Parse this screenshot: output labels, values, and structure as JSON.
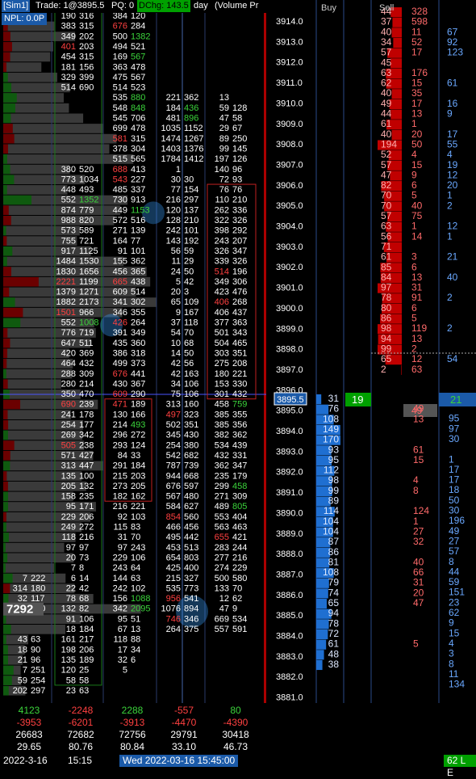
{
  "header": {
    "account": "[Sim1]",
    "trade": "Trade: 1@3895.5",
    "pq": "PQ: 0",
    "dchg": "DChg: 143.5",
    "period": "day",
    "volume_profile": "(Volume Pr",
    "npl": "NPL: 0.0P"
  },
  "ladder_headers": {
    "buy": "Buy",
    "sell": "Sell"
  },
  "current_price": "3895.5",
  "last_trade_buy": "19",
  "last_trade_sell": "21",
  "ask_highlight": "49",
  "poc_label": "7292",
  "price_levels": [
    "3914.0",
    "3913.0",
    "3912.0",
    "3911.0",
    "3910.0",
    "3909.0",
    "3908.0",
    "3907.0",
    "3906.0",
    "3905.0",
    "3904.0",
    "3903.0",
    "3902.0",
    "3901.0",
    "3900.0",
    "3899.0",
    "3898.0",
    "3897.0",
    "3896.0",
    "3895.0",
    "3894.0",
    "3893.0",
    "3892.0",
    "3891.0",
    "3890.0",
    "3889.0",
    "3888.0",
    "3887.0",
    "3886.0",
    "3885.0",
    "3884.0",
    "3883.0",
    "3882.0",
    "3881.0"
  ],
  "sell_depth": [
    "44",
    "37",
    "40",
    "34",
    "57",
    "45",
    "63",
    "62",
    "40",
    "49",
    "44",
    "61",
    "40",
    "194",
    "52",
    "57",
    "47",
    "82",
    "70",
    "70",
    "57",
    "63",
    "56",
    "71",
    "61",
    "85",
    "84",
    "97",
    "78",
    "80",
    "86",
    "98",
    "94",
    "99",
    "65",
    "2"
  ],
  "sell_traded": [
    "328",
    "598",
    "11",
    "52",
    "17",
    "",
    "176",
    "15",
    "35",
    "17",
    "13",
    "1",
    "20",
    "50",
    "4",
    "15",
    "9",
    "6",
    "5",
    "40",
    "75",
    "1",
    "14",
    "",
    "3",
    "6",
    "13",
    "31",
    "91",
    "6",
    "5",
    "119",
    "13",
    "2",
    "12",
    "63"
  ],
  "sell_extra": [
    "",
    "",
    "67",
    "92",
    "123",
    "",
    "",
    "61",
    "",
    "16",
    "9",
    "",
    "17",
    "55",
    "4",
    "19",
    "12",
    "20",
    "1",
    "2",
    "",
    "12",
    "1",
    "",
    "21",
    "",
    "40",
    "",
    "2",
    "",
    "",
    "2",
    "",
    "",
    "54",
    ""
  ],
  "bid_depth": [
    "31",
    "76",
    "108",
    "149",
    "170",
    "93",
    "95",
    "112",
    "98",
    "99",
    "89",
    "114",
    "104",
    "104",
    "87",
    "86",
    "81",
    "108",
    "79",
    "74",
    "65",
    "94",
    "78",
    "72",
    "61",
    "48",
    "38"
  ],
  "bid_traded": [
    "",
    "49",
    "13",
    "",
    "",
    "61",
    "15",
    "",
    "4",
    "8",
    "",
    "124",
    "1",
    "27",
    "32",
    "",
    "40",
    "66",
    "31",
    "20",
    "47",
    "",
    "",
    "",
    "5",
    "",
    ""
  ],
  "bid_extra": [
    "",
    "95",
    "97",
    "30",
    "",
    "1",
    "17",
    "17",
    "18",
    "50",
    "30",
    "196",
    "49",
    "27",
    "57",
    "8",
    "44",
    "59",
    "151",
    "23",
    "62",
    "9",
    "15",
    "4",
    "3",
    "8",
    "11",
    "134",
    ""
  ],
  "bars": [
    [
      [
        190,
        316
      ],
      [
        384,
        120
      ]
    ],
    [
      [
        383,
        315
      ],
      [
        676,
        284
      ]
    ],
    [
      [
        349,
        202
      ],
      [
        500,
        1382
      ]
    ],
    [
      [
        401,
        203
      ],
      [
        494,
        521
      ]
    ],
    [
      [
        454,
        315
      ],
      [
        169,
        567
      ]
    ],
    [
      [
        181,
        156
      ],
      [
        363,
        478
      ]
    ],
    [
      [
        329,
        399
      ],
      [
        475,
        567
      ]
    ],
    [
      [
        514,
        690
      ],
      [
        514,
        523
      ]
    ],
    [
      [
        535,
        880
      ],
      [
        221,
        362
      ],
      [
        13,
        ""
      ]
    ],
    [
      [
        548,
        848
      ],
      [
        184,
        436
      ],
      [
        59,
        128
      ]
    ],
    [
      [
        545,
        706
      ],
      [
        481,
        896
      ],
      [
        47,
        58
      ]
    ],
    [
      [
        699,
        478
      ],
      [
        1035,
        1152
      ],
      [
        29,
        67
      ]
    ],
    [
      [
        581,
        315
      ],
      [
        1474,
        1267
      ],
      [
        89,
        250
      ]
    ],
    [
      [
        378,
        304
      ],
      [
        1403,
        1376
      ],
      [
        99,
        145
      ]
    ],
    [
      [
        515,
        565
      ],
      [
        1784,
        1412
      ],
      [
        197,
        126
      ]
    ],
    [
      [
        380,
        520
      ],
      [
        688,
        413
      ],
      [
        1,
        ""
      ],
      [
        140,
        96
      ]
    ],
    [
      [
        773,
        1034
      ],
      [
        543,
        227
      ],
      [
        30,
        30
      ],
      [
        72,
        93
      ]
    ],
    [
      [
        448,
        493
      ],
      [
        485,
        337
      ],
      [
        77,
        154
      ],
      [
        76,
        76
      ]
    ],
    [
      [
        552,
        1352
      ],
      [
        730,
        913
      ],
      [
        216,
        297
      ],
      [
        110,
        210
      ]
    ],
    [
      [
        874,
        779
      ],
      [
        449,
        1153
      ],
      [
        120,
        137
      ],
      [
        262,
        336
      ]
    ],
    [
      [
        988,
        820
      ],
      [
        572,
        516
      ],
      [
        128,
        210
      ],
      [
        322,
        326
      ]
    ],
    [
      [
        573,
        589
      ],
      [
        271,
        139
      ],
      [
        242,
        101
      ],
      [
        398,
        292
      ]
    ],
    [
      [
        755,
        721
      ],
      [
        164,
        77
      ],
      [
        143,
        192
      ],
      [
        243,
        207
      ]
    ],
    [
      [
        917,
        1125
      ],
      [
        91,
        101
      ],
      [
        56,
        59
      ],
      [
        326,
        347
      ]
    ],
    [
      [
        1484,
        1530
      ],
      [
        155,
        362
      ],
      [
        11,
        29
      ],
      [
        339,
        326
      ]
    ],
    [
      [
        1830,
        1656
      ],
      [
        456,
        365
      ],
      [
        24,
        50
      ],
      [
        514,
        196
      ]
    ],
    [
      [
        2221,
        1199
      ],
      [
        665,
        438
      ],
      [
        5,
        42
      ],
      [
        349,
        306
      ]
    ],
    [
      [
        1379,
        1271
      ],
      [
        609,
        514
      ],
      [
        20,
        3
      ],
      [
        423,
        476
      ]
    ],
    [
      [
        1882,
        2173
      ],
      [
        341,
        302
      ],
      [
        65,
        109
      ],
      [
        406,
        268
      ]
    ],
    [
      [
        1501,
        966
      ],
      [
        346,
        355
      ],
      [
        9,
        167
      ],
      [
        406,
        437
      ]
    ],
    [
      [
        552,
        1008
      ],
      [
        426,
        264
      ],
      [
        37,
        118
      ],
      [
        377,
        363
      ]
    ],
    [
      [
        776,
        719
      ],
      [
        391,
        349
      ],
      [
        54,
        70
      ],
      [
        501,
        343
      ]
    ],
    [
      [
        647,
        511
      ],
      [
        435,
        360
      ],
      [
        10,
        68
      ],
      [
        504,
        465
      ]
    ],
    [
      [
        420,
        369
      ],
      [
        386,
        318
      ],
      [
        14,
        50
      ],
      [
        303,
        351
      ]
    ],
    [
      [
        464,
        432
      ],
      [
        499,
        373
      ],
      [
        42,
        56
      ],
      [
        275,
        208
      ]
    ],
    [
      [
        288,
        309
      ],
      [
        676,
        441
      ],
      [
        42,
        163
      ],
      [
        180,
        221
      ]
    ],
    [
      [
        280,
        214
      ],
      [
        430,
        367
      ],
      [
        34,
        106
      ],
      [
        153,
        330
      ]
    ],
    [
      [
        350,
        470
      ],
      [
        609,
        290
      ],
      [
        75,
        106
      ],
      [
        301,
        432
      ]
    ],
    [
      [
        690,
        239
      ],
      [
        471,
        189
      ],
      [
        313,
        160
      ],
      [
        458,
        759
      ]
    ],
    [
      [
        241,
        178
      ],
      [
        130,
        166
      ],
      [
        497,
        323
      ],
      [
        385,
        355
      ]
    ],
    [
      [
        254,
        177
      ],
      [
        214,
        493
      ],
      [
        502,
        351
      ],
      [
        385,
        356
      ]
    ],
    [
      [
        269,
        342
      ],
      [
        296,
        272
      ],
      [
        345,
        430
      ],
      [
        382,
        362
      ]
    ],
    [
      [
        505,
        238
      ],
      [
        293,
        124
      ],
      [
        254,
        380
      ],
      [
        534,
        439
      ]
    ],
    [
      [
        571,
        427
      ],
      [
        84,
        33
      ],
      [
        542,
        682
      ],
      [
        432,
        331
      ]
    ],
    [
      [
        313,
        447
      ],
      [
        291,
        184
      ],
      [
        787,
        739
      ],
      [
        362,
        347
      ]
    ],
    [
      [
        135,
        100
      ],
      [
        215,
        203
      ],
      [
        944,
        668
      ],
      [
        235,
        179
      ]
    ],
    [
      [
        205,
        132
      ],
      [
        273,
        205
      ],
      [
        676,
        597
      ],
      [
        299,
        458
      ]
    ],
    [
      [
        158,
        235
      ],
      [
        182,
        162
      ],
      [
        567,
        480
      ],
      [
        271,
        309
      ]
    ],
    [
      [
        95,
        171
      ],
      [
        216,
        221
      ],
      [
        584,
        627
      ],
      [
        489,
        805
      ]
    ],
    [
      [
        229,
        206
      ],
      [
        92,
        103
      ],
      [
        854,
        560
      ],
      [
        553,
        404
      ]
    ],
    [
      [
        249,
        272
      ],
      [
        115,
        83
      ],
      [
        466,
        456
      ],
      [
        563,
        463
      ]
    ],
    [
      [
        118,
        216
      ],
      [
        31,
        70
      ],
      [
        495,
        442
      ],
      [
        655,
        421
      ]
    ],
    [
      [
        97,
        97
      ],
      [
        97,
        243
      ],
      [
        453,
        513
      ],
      [
        283,
        244
      ]
    ],
    [
      [
        20,
        73
      ],
      [
        229,
        106
      ],
      [
        654,
        803
      ],
      [
        277,
        216
      ]
    ],
    [
      [
        7,
        8
      ],
      [
        243,
        64
      ],
      [
        425,
        400
      ],
      [
        274,
        229
      ]
    ],
    [
      [
        7,
        222
      ],
      [
        6,
        14
      ],
      [
        144,
        63
      ],
      [
        215,
        327
      ],
      [
        500,
        580
      ]
    ],
    [
      [
        314,
        180
      ],
      [
        22,
        42
      ],
      [
        242,
        102
      ],
      [
        535,
        773
      ],
      [
        133,
        70
      ]
    ],
    [
      [
        32,
        117
      ],
      [
        78,
        68
      ],
      [
        156,
        1088
      ],
      [
        956,
        541
      ],
      [
        12,
        62
      ]
    ],
    [
      [
        31,
        170
      ],
      [
        132,
        82
      ],
      [
        342,
        2095
      ],
      [
        1076,
        894
      ],
      [
        47,
        9
      ]
    ],
    [
      [
        91,
        106
      ],
      [
        95,
        51
      ],
      [
        746,
        346
      ],
      [
        669,
        534
      ]
    ],
    [
      [
        18,
        184
      ],
      [
        67,
        13
      ],
      [
        264,
        375
      ],
      [
        557,
        591
      ]
    ],
    [
      [
        43,
        63
      ],
      [
        161,
        217
      ],
      [
        118,
        88
      ]
    ],
    [
      [
        18,
        90
      ],
      [
        198,
        206
      ],
      [
        17,
        34
      ]
    ],
    [
      [
        21,
        96
      ],
      [
        135,
        189
      ],
      [
        32,
        6
      ]
    ],
    [
      [
        7,
        251
      ],
      [
        120,
        25
      ],
      [
        5,
        ""
      ]
    ],
    [
      [
        59,
        254
      ],
      [
        58,
        58
      ]
    ],
    [
      [
        202,
        297
      ],
      [
        23,
        63
      ]
    ]
  ],
  "summary": {
    "delta": [
      "4123",
      "-2248",
      "2288",
      "-557",
      "80"
    ],
    "cum_delta": [
      "-3953",
      "-6201",
      "-3913",
      "-4470",
      "-4390"
    ],
    "volume": [
      "26683",
      "72682",
      "72756",
      "29791",
      "30418"
    ],
    "ratio": [
      "29.65",
      "80.76",
      "80.84",
      "33.10",
      "46.73"
    ]
  },
  "footer": {
    "date": "2022-3-16",
    "time": "15:15",
    "bar_timestamp": "Wed 2022-03-16 15:45:00",
    "connection": "62 L E"
  },
  "colors": {
    "buy_blue": "#1f6fd1",
    "sell_red": "#d10000",
    "green_text": "#3bd43b",
    "red_text": "#ff4040",
    "price_white": "#ffffff"
  }
}
